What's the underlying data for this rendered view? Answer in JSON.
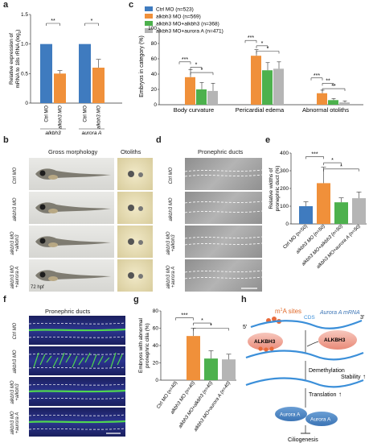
{
  "panels": {
    "a": "a",
    "b": "b",
    "c": "c",
    "d": "d",
    "e": "e",
    "f": "f",
    "g": "g",
    "h": "h"
  },
  "panel_a": {
    "ylabel": "Relative expression of",
    "ylabel2": "mRNA to 18s rRNA (log",
    "ylabel_sub": "2",
    "ylabel_end": ")",
    "yticks": [
      "0",
      "0.5",
      "1.0",
      "1.5"
    ],
    "groups": [
      {
        "name": "alkbh3",
        "bars": [
          {
            "label": "Ctrl MO",
            "value": 1.0,
            "color": "#3f7bbf"
          },
          {
            "label": "alkbh3 MO",
            "value": 0.5,
            "color": "#f0903a"
          }
        ],
        "sig": "**"
      },
      {
        "name": "aurora A",
        "bars": [
          {
            "label": "Ctrl MO",
            "value": 1.0,
            "color": "#3f7bbf"
          },
          {
            "label": "alkbh3 MO",
            "value": 0.6,
            "color": "#f0903a"
          }
        ],
        "sig": "*"
      }
    ]
  },
  "panel_b": {
    "header_left": "Gross morphology",
    "header_right": "Otoliths",
    "rows": [
      "Ctrl MO",
      "alkbh3 MO",
      "alkbh3 MO +alkbh3",
      "alkbh3 MO +aurora A"
    ],
    "stage": "72 hpf"
  },
  "chart_data": [
    {
      "type": "bar",
      "panel": "c",
      "ylabel": "Embryos in category (%)",
      "ylim": [
        0,
        100
      ],
      "yticks": [
        "0",
        "20",
        "40",
        "60",
        "80",
        "100"
      ],
      "categories": [
        "Body curvature",
        "Pericardial edema",
        "Abnormal otoliths"
      ],
      "series": [
        {
          "name": "Ctrl MO (n=523)",
          "color": "#3f7bbf",
          "values": [
            0,
            0,
            0
          ]
        },
        {
          "name": "alkbh3 MO (n=569)",
          "color": "#f0903a",
          "values": [
            36,
            64,
            15
          ]
        },
        {
          "name": "alkbh3 MO+alkbh3 (n=368)",
          "color": "#4db14d",
          "values": [
            20,
            45,
            6
          ]
        },
        {
          "name": "alkbh3 MO+aurora A (n=471)",
          "color": "#b5b5b5",
          "values": [
            18,
            47,
            3
          ]
        }
      ],
      "significance": [
        [
          "***",
          "*",
          "*"
        ],
        [
          "***",
          "*",
          "*"
        ],
        [
          "***",
          "**",
          "**"
        ]
      ]
    },
    {
      "type": "bar",
      "panel": "e",
      "ylabel": "Relative widths of",
      "ylabel2": "pronephric duct (%)",
      "ylim": [
        0,
        400
      ],
      "yticks": [
        "0",
        "100",
        "200",
        "300",
        "400"
      ],
      "categories": [
        "Ctrl MO (n=50)",
        "alkbh3 MO (n=50)",
        "alkbh3 MO+alkbh3 (n=50)",
        "alkbh3 MO+aurora A (n=50)"
      ],
      "values": [
        100,
        230,
        122,
        145
      ],
      "colors": [
        "#3f7bbf",
        "#f0903a",
        "#4db14d",
        "#b5b5b5"
      ],
      "significance": [
        "***",
        "*",
        "*"
      ]
    },
    {
      "type": "bar",
      "panel": "g",
      "ylabel": "Embryos with abnormal",
      "ylabel2": "pronephric cilia (%)",
      "ylim": [
        0,
        80
      ],
      "yticks": [
        "0",
        "20",
        "40",
        "60",
        "80"
      ],
      "categories": [
        "Ctrl MO (n=40)",
        "alkbh3 MO (n=40)",
        "alkbh3 MO+alkbh3 (n=40)",
        "alkbh3 MO+aurora A (n=40)"
      ],
      "values": [
        0,
        51,
        25,
        24
      ],
      "colors": [
        "#3f7bbf",
        "#f0903a",
        "#4db14d",
        "#b5b5b5"
      ],
      "significance": [
        "***",
        "*",
        "*"
      ]
    }
  ],
  "panel_d": {
    "header": "Pronephric ducts",
    "rows": [
      "Ctrl MO",
      "alkbh3 MO",
      "alkbh3 MO +alkbh3",
      "alkbh3 MO +aurora A"
    ]
  },
  "panel_f": {
    "header": "Pronephric ducts",
    "rows": [
      "Ctrl MO",
      "alkbh3 MO",
      "alkbh3 MO +alkbh3",
      "alkbh3 MO +aurora A"
    ]
  },
  "panel_h": {
    "m1a": "m",
    "m1a_sup": "1",
    "m1a_rest": "A sites",
    "mrna_label": "Aurora A mRNA",
    "cds": "CDS",
    "five": "5′",
    "three": "3′",
    "alkbh3": "ALKBH3",
    "demethylation": "Demethylation",
    "translation": "Translation",
    "stability": "Stability",
    "aurora_a": "Aurora A",
    "ciliogenesis": "Ciliogenesis"
  }
}
